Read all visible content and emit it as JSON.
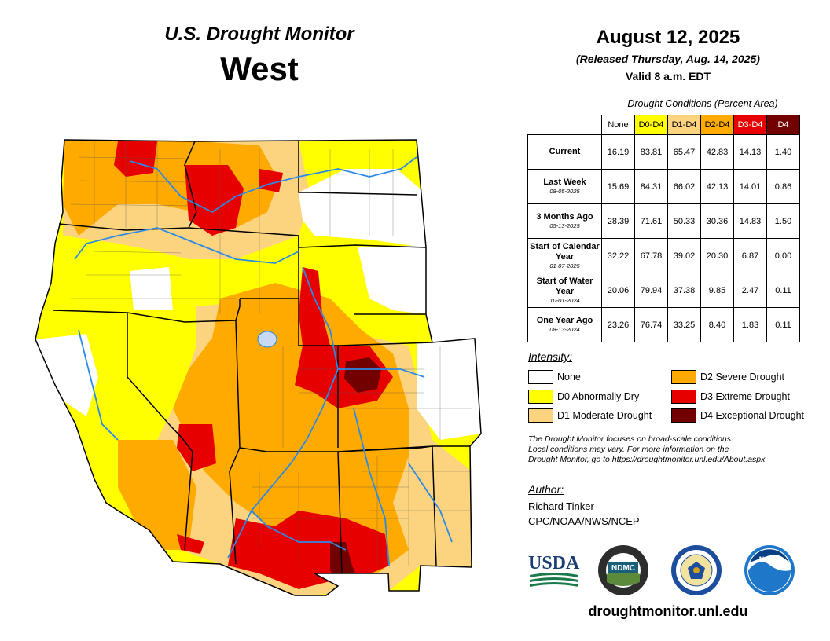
{
  "header": {
    "title": "U.S. Drought Monitor",
    "region": "West",
    "date": "August 12, 2025",
    "released": "(Released Thursday, Aug. 14, 2025)",
    "valid": "Valid 8 a.m. EDT"
  },
  "conditions": {
    "caption": "Drought Conditions (Percent Area)",
    "columns": [
      {
        "label": "None",
        "color": "#ffffff"
      },
      {
        "label": "D0-D4",
        "color": "#ffff00"
      },
      {
        "label": "D1-D4",
        "color": "#fcd37f"
      },
      {
        "label": "D2-D4",
        "color": "#ffaa00"
      },
      {
        "label": "D3-D4",
        "color": "#e60000"
      },
      {
        "label": "D4",
        "color": "#730000"
      }
    ],
    "rows": [
      {
        "label": "Current",
        "sub": "",
        "values": [
          "16.19",
          "83.81",
          "65.47",
          "42.83",
          "14.13",
          "1.40"
        ]
      },
      {
        "label": "Last Week",
        "sub": "08-05-2025",
        "values": [
          "15.69",
          "84.31",
          "66.02",
          "42.13",
          "14.01",
          "0.86"
        ]
      },
      {
        "label": "3 Months Ago",
        "sub": "05-13-2025",
        "values": [
          "28.39",
          "71.61",
          "50.33",
          "30.36",
          "14.83",
          "1.50"
        ]
      },
      {
        "label": "Start of Calendar Year",
        "sub": "01-07-2025",
        "values": [
          "32.22",
          "67.78",
          "39.02",
          "20.30",
          "6.87",
          "0.00"
        ]
      },
      {
        "label": "Start of Water Year",
        "sub": "10-01-2024",
        "values": [
          "20.06",
          "79.94",
          "37.38",
          "9.85",
          "2.47",
          "0.11"
        ]
      },
      {
        "label": "One Year Ago",
        "sub": "08-13-2024",
        "values": [
          "23.26",
          "76.74",
          "33.25",
          "8.40",
          "1.83",
          "0.11"
        ]
      }
    ]
  },
  "legend": {
    "title": "Intensity:",
    "items": [
      {
        "label": "None",
        "color": "#ffffff"
      },
      {
        "label": "D0 Abnormally Dry",
        "color": "#ffff00"
      },
      {
        "label": "D1 Moderate Drought",
        "color": "#fcd37f"
      },
      {
        "label": "D2 Severe Drought",
        "color": "#ffaa00"
      },
      {
        "label": "D3 Extreme Drought",
        "color": "#e60000"
      },
      {
        "label": "D4 Exceptional Drought",
        "color": "#730000"
      }
    ]
  },
  "note": {
    "line1": "The Drought Monitor focuses on broad-scale conditions.",
    "line2": "Local conditions may vary. For more information on the",
    "line3": "Drought Monitor, go to https://droughtmonitor.unl.edu/About.aspx"
  },
  "author": {
    "title": "Author:",
    "name": "Richard Tinker",
    "org": "CPC/NOAA/NWS/NCEP"
  },
  "logos": {
    "usda": "USDA",
    "ndmc": "NDMC",
    "noaa": "NOAA"
  },
  "website": "droughtmonitor.unl.edu"
}
